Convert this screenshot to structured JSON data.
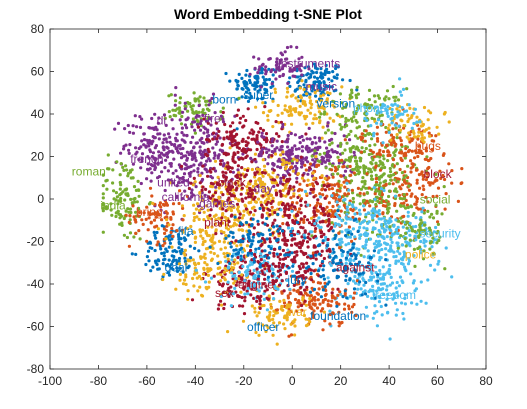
{
  "chart_data": {
    "type": "scatter",
    "title": "Word Embedding t-SNE Plot",
    "xlabel": "",
    "ylabel": "",
    "xlim": [
      -100,
      80
    ],
    "ylim": [
      -80,
      80
    ],
    "xticks": [
      -100,
      -80,
      -60,
      -40,
      -20,
      0,
      20,
      40,
      60,
      80
    ],
    "yticks": [
      -80,
      -60,
      -40,
      -20,
      0,
      20,
      40,
      60,
      80
    ],
    "grid": false,
    "palette": [
      "#0072BD",
      "#D95319",
      "#EDB120",
      "#7E2F8E",
      "#77AC30",
      "#4DBEEE",
      "#A2142F"
    ],
    "clusters": [
      {
        "cx": 10,
        "cy": 55,
        "sx": 6,
        "sy": 5,
        "n": 120,
        "c": 0
      },
      {
        "cx": -15,
        "cy": 54,
        "sx": 5,
        "sy": 5,
        "n": 90,
        "c": 0
      },
      {
        "cx": -5,
        "cy": 62,
        "sx": 5,
        "sy": 4,
        "n": 70,
        "c": 3
      },
      {
        "cx": 5,
        "cy": 43,
        "sx": 8,
        "sy": 5,
        "n": 110,
        "c": 2
      },
      {
        "cx": 30,
        "cy": 42,
        "sx": 8,
        "sy": 5,
        "n": 90,
        "c": 4
      },
      {
        "cx": -40,
        "cy": 42,
        "sx": 6,
        "sy": 4,
        "n": 70,
        "c": 4
      },
      {
        "cx": -40,
        "cy": 20,
        "sx": 8,
        "sy": 12,
        "n": 260,
        "c": 3
      },
      {
        "cx": -58,
        "cy": 25,
        "sx": 6,
        "sy": 8,
        "n": 120,
        "c": 3
      },
      {
        "cx": -70,
        "cy": 0,
        "sx": 5,
        "sy": 10,
        "n": 110,
        "c": 4
      },
      {
        "cx": -50,
        "cy": -25,
        "sx": 6,
        "sy": 6,
        "n": 110,
        "c": 0
      },
      {
        "cx": -55,
        "cy": -8,
        "sx": 6,
        "sy": 6,
        "n": 80,
        "c": 1
      },
      {
        "cx": -20,
        "cy": 28,
        "sx": 8,
        "sy": 6,
        "n": 140,
        "c": 6
      },
      {
        "cx": -5,
        "cy": 20,
        "sx": 6,
        "sy": 6,
        "n": 100,
        "c": 3
      },
      {
        "cx": 10,
        "cy": 20,
        "sx": 8,
        "sy": 6,
        "n": 140,
        "c": 3
      },
      {
        "cx": 30,
        "cy": 20,
        "sx": 10,
        "sy": 8,
        "n": 160,
        "c": 4
      },
      {
        "cx": 45,
        "cy": 25,
        "sx": 8,
        "sy": 6,
        "n": 110,
        "c": 1
      },
      {
        "cx": 50,
        "cy": 5,
        "sx": 8,
        "sy": 8,
        "n": 130,
        "c": 1
      },
      {
        "cx": 35,
        "cy": 0,
        "sx": 10,
        "sy": 10,
        "n": 170,
        "c": 4
      },
      {
        "cx": 15,
        "cy": 0,
        "sx": 10,
        "sy": 10,
        "n": 200,
        "c": 1
      },
      {
        "cx": -10,
        "cy": 5,
        "sx": 10,
        "sy": 8,
        "n": 170,
        "c": 2
      },
      {
        "cx": -30,
        "cy": -10,
        "sx": 10,
        "sy": 10,
        "n": 190,
        "c": 2
      },
      {
        "cx": -25,
        "cy": 5,
        "sx": 8,
        "sy": 8,
        "n": 120,
        "c": 6
      },
      {
        "cx": 0,
        "cy": -10,
        "sx": 10,
        "sy": 10,
        "n": 200,
        "c": 6
      },
      {
        "cx": 25,
        "cy": -15,
        "sx": 10,
        "sy": 8,
        "n": 160,
        "c": 5
      },
      {
        "cx": 45,
        "cy": -20,
        "sx": 8,
        "sy": 8,
        "n": 150,
        "c": 5
      },
      {
        "cx": 35,
        "cy": -40,
        "sx": 8,
        "sy": 8,
        "n": 140,
        "c": 5
      },
      {
        "cx": 10,
        "cy": -48,
        "sx": 8,
        "sy": 6,
        "n": 140,
        "c": 1
      },
      {
        "cx": -5,
        "cy": -55,
        "sx": 6,
        "sy": 5,
        "n": 80,
        "c": 2
      },
      {
        "cx": -20,
        "cy": -40,
        "sx": 8,
        "sy": 6,
        "n": 110,
        "c": 6
      },
      {
        "cx": -35,
        "cy": -35,
        "sx": 8,
        "sy": 6,
        "n": 100,
        "c": 2
      },
      {
        "cx": -15,
        "cy": -35,
        "sx": 8,
        "sy": 6,
        "n": 110,
        "c": 5
      },
      {
        "cx": 0,
        "cy": -30,
        "sx": 10,
        "sy": 8,
        "n": 160,
        "c": 6
      },
      {
        "cx": 20,
        "cy": -30,
        "sx": 8,
        "sy": 8,
        "n": 110,
        "c": 0
      },
      {
        "cx": 55,
        "cy": -15,
        "sx": 5,
        "sy": 6,
        "n": 60,
        "c": 4
      },
      {
        "cx": -15,
        "cy": -20,
        "sx": 8,
        "sy": 6,
        "n": 100,
        "c": 0
      },
      {
        "cx": 50,
        "cy": 35,
        "sx": 6,
        "sy": 5,
        "n": 60,
        "c": 2
      },
      {
        "cx": 40,
        "cy": 40,
        "sx": 6,
        "sy": 5,
        "n": 60,
        "c": 5
      }
    ],
    "labels": [
      {
        "text": "instruments",
        "x": 7,
        "y": 62,
        "c": 3
      },
      {
        "text": "music",
        "x": 12,
        "y": 51,
        "c": 3
      },
      {
        "text": "super",
        "x": -14,
        "y": 47,
        "c": 0
      },
      {
        "text": "version",
        "x": 18,
        "y": 43,
        "c": 0
      },
      {
        "text": "phone",
        "x": 32,
        "y": 41,
        "c": 5
      },
      {
        "text": "born",
        "x": -28,
        "y": 45,
        "c": 0
      },
      {
        "text": "di",
        "x": -54,
        "y": 35,
        "c": 3
      },
      {
        "text": "fire",
        "x": -33,
        "y": 36,
        "c": 3
      },
      {
        "text": "bugs",
        "x": 56,
        "y": 23,
        "c": 1
      },
      {
        "text": "french",
        "x": -60,
        "y": 17,
        "c": 3
      },
      {
        "text": "roman",
        "x": -84,
        "y": 11,
        "c": 4
      },
      {
        "text": "united",
        "x": -49,
        "y": 6,
        "c": 3
      },
      {
        "text": "black",
        "x": -25,
        "y": 6,
        "c": 6
      },
      {
        "text": "block",
        "x": 60,
        "y": 10,
        "c": 6
      },
      {
        "text": "day",
        "x": -12,
        "y": 3,
        "c": 3
      },
      {
        "text": "california",
        "x": -44,
        "y": -1,
        "c": 3
      },
      {
        "text": "social",
        "x": 59,
        "y": -2,
        "c": 4
      },
      {
        "text": "india",
        "x": -74,
        "y": -5,
        "c": 4
      },
      {
        "text": "games",
        "x": -31,
        "y": -4,
        "c": 3
      },
      {
        "text": "bring",
        "x": -59,
        "y": -8,
        "c": 1
      },
      {
        "text": "security",
        "x": 61,
        "y": -18,
        "c": 5
      },
      {
        "text": "fifa",
        "x": -44,
        "y": -17,
        "c": 0
      },
      {
        "text": "plant",
        "x": -31,
        "y": -13,
        "c": 6
      },
      {
        "text": "goal",
        "x": -48,
        "y": -34,
        "c": 0
      },
      {
        "text": "against",
        "x": 26,
        "y": -34,
        "c": 6
      },
      {
        "text": "police",
        "x": 53,
        "y": -28,
        "c": 2
      },
      {
        "text": "jury",
        "x": 2,
        "y": -40,
        "c": 0
      },
      {
        "text": "engine",
        "x": -15,
        "y": -42,
        "c": 6
      },
      {
        "text": "sex",
        "x": -28,
        "y": -46,
        "c": 6
      },
      {
        "text": "freedom",
        "x": 42,
        "y": -47,
        "c": 5
      },
      {
        "text": "war",
        "x": 2,
        "y": -55,
        "c": 2
      },
      {
        "text": "foundation",
        "x": 19,
        "y": -57,
        "c": 0
      },
      {
        "text": "officer",
        "x": -12,
        "y": -62,
        "c": 0
      }
    ]
  }
}
